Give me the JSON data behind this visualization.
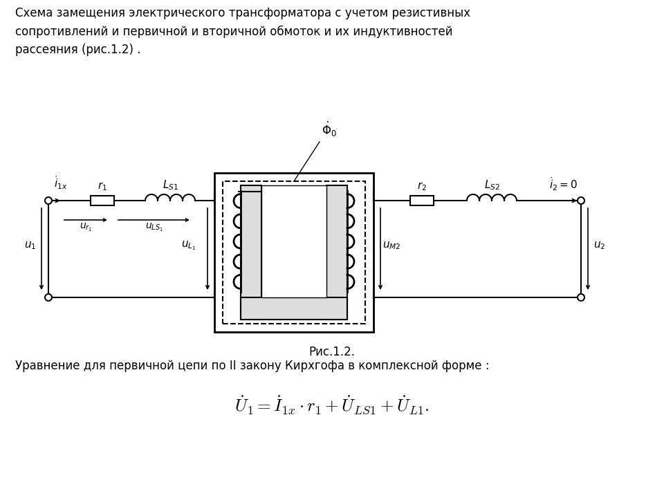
{
  "title_text": "Схема замещения электрического трансформатора с учетом резистивных\nсопротивлений и первичной и вторичной обмоток и их индуктивностей\nрассеяния (рис.1.2) .",
  "fig_caption": "Рис.1.2.",
  "equation_label": "Уравнение для первичной цепи по II закону Кирхгофа в комплексной форме :",
  "bg_color": "#ffffff",
  "line_color": "#000000",
  "text_color": "#000000"
}
